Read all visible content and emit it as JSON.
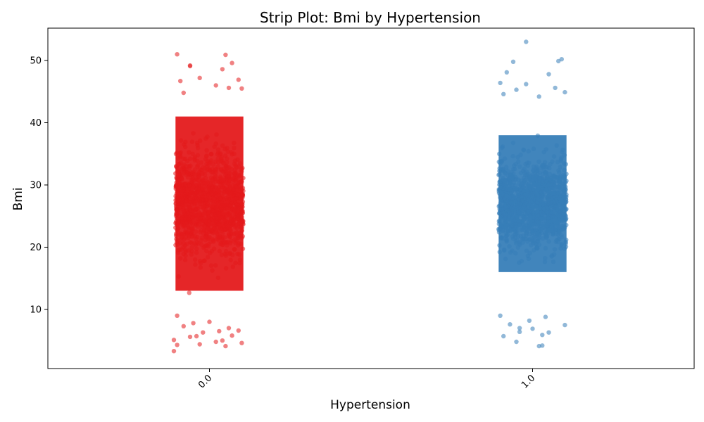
{
  "chart_data": {
    "type": "scatter",
    "subtype": "strip",
    "title": "Strip Plot: Bmi by Hypertension",
    "xlabel": "Hypertension",
    "ylabel": "Bmi",
    "categories": [
      "0.0",
      "1.0"
    ],
    "ylim": [
      0.5,
      55.2
    ],
    "yticks": [
      "10",
      "20",
      "30",
      "40",
      "50"
    ],
    "grid": false,
    "legend": "none",
    "series": [
      {
        "category": "0.0",
        "color": "#e41a1c",
        "dense_range": [
          10,
          44
        ],
        "core_range": [
          13,
          41
        ],
        "outliers": [
          [
            -0.1,
            51
          ],
          [
            0.05,
            50.9
          ],
          [
            -0.06,
            49.2
          ],
          [
            -0.06,
            49.1
          ],
          [
            0.04,
            48.6
          ],
          [
            0.07,
            49.6
          ],
          [
            -0.03,
            47.2
          ],
          [
            0.09,
            46.9
          ],
          [
            -0.09,
            46.7
          ],
          [
            0.02,
            46.0
          ],
          [
            0.1,
            45.5
          ],
          [
            -0.08,
            44.8
          ],
          [
            0.06,
            45.6
          ],
          [
            -0.1,
            9.0
          ],
          [
            0.0,
            8.0
          ],
          [
            -0.05,
            7.8
          ],
          [
            0.06,
            7.0
          ],
          [
            -0.08,
            7.3
          ],
          [
            0.03,
            6.5
          ],
          [
            -0.02,
            6.3
          ],
          [
            0.09,
            6.6
          ],
          [
            -0.04,
            5.7
          ],
          [
            0.07,
            5.8
          ],
          [
            -0.11,
            5.1
          ],
          [
            0.04,
            5.0
          ],
          [
            -0.06,
            5.6
          ],
          [
            0.02,
            4.8
          ],
          [
            -0.1,
            4.3
          ],
          [
            0.05,
            4.1
          ],
          [
            -0.03,
            4.4
          ],
          [
            0.1,
            4.6
          ],
          [
            -0.11,
            3.3
          ]
        ]
      },
      {
        "category": "1.0",
        "color": "#377eb8",
        "dense_range": [
          13,
          41
        ],
        "core_range": [
          16,
          38
        ],
        "outliers": [
          [
            -0.02,
            53
          ],
          [
            0.09,
            50.2
          ],
          [
            0.08,
            49.9
          ],
          [
            -0.06,
            49.8
          ],
          [
            0.05,
            47.8
          ],
          [
            -0.08,
            48.1
          ],
          [
            -0.1,
            46.4
          ],
          [
            -0.02,
            46.2
          ],
          [
            0.07,
            45.6
          ],
          [
            -0.05,
            45.3
          ],
          [
            0.1,
            44.9
          ],
          [
            -0.09,
            44.6
          ],
          [
            0.02,
            44.2
          ],
          [
            -0.1,
            9.0
          ],
          [
            -0.01,
            8.2
          ],
          [
            0.04,
            8.8
          ],
          [
            -0.07,
            7.6
          ],
          [
            -0.04,
            7.0
          ],
          [
            0.0,
            6.9
          ],
          [
            0.05,
            6.3
          ],
          [
            -0.04,
            6.4
          ],
          [
            0.1,
            7.5
          ],
          [
            -0.09,
            5.7
          ],
          [
            0.03,
            5.9
          ],
          [
            -0.05,
            4.8
          ],
          [
            0.02,
            4.1
          ],
          [
            0.03,
            4.2
          ]
        ]
      }
    ]
  }
}
